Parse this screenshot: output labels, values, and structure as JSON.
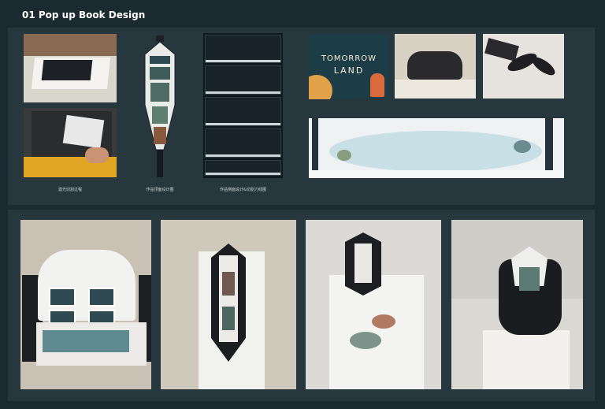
{
  "title": "01 Pop up Book Design",
  "captions": {
    "laser": "激光切割过程",
    "structure": "作品顶面设计图",
    "pages": "作品侧面设计&切割刀线图"
  },
  "cover": {
    "line1": "TOMORROW",
    "line2": "LAND"
  },
  "colors": {
    "background": "#1b2a30",
    "panel": "#26383d",
    "title": "#ffffff"
  }
}
